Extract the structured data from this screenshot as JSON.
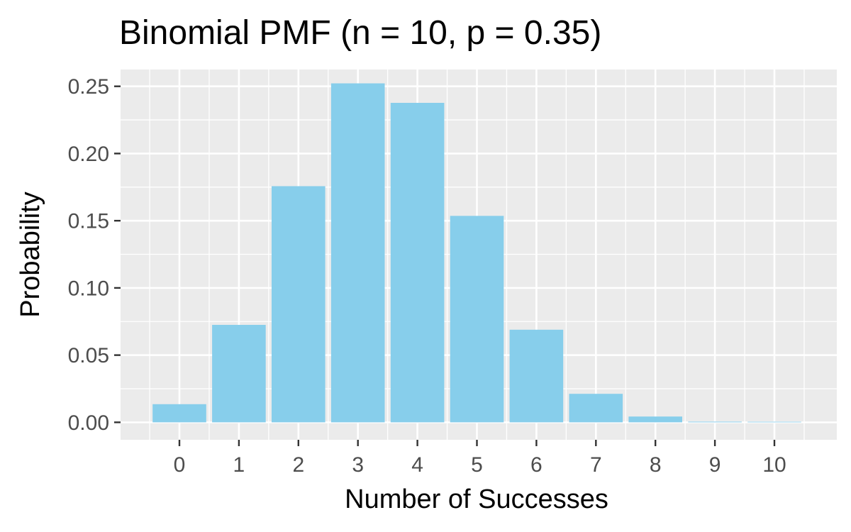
{
  "chart_data": {
    "type": "bar",
    "title": "Binomial PMF (n = 10, p = 0.35)",
    "xlabel": "Number of Successes",
    "ylabel": "Probability",
    "categories": [
      "0",
      "1",
      "2",
      "3",
      "4",
      "5",
      "6",
      "7",
      "8",
      "9",
      "10"
    ],
    "values": [
      0.0135,
      0.0725,
      0.1757,
      0.2522,
      0.2377,
      0.1536,
      0.0689,
      0.0212,
      0.0043,
      0.0005,
      3e-05
    ],
    "ylim": [
      -0.013,
      0.2625
    ],
    "y_ticks": [
      0.0,
      0.05,
      0.1,
      0.15,
      0.2,
      0.25
    ],
    "y_tick_labels": [
      "0.00",
      "0.05",
      "0.10",
      "0.15",
      "0.20",
      "0.25"
    ],
    "grid": true,
    "legend": "none",
    "colors": {
      "bar": "#87CEEB",
      "panel": "#EBEBEB",
      "grid": "#FFFFFF",
      "tick_text": "#4D4D4D",
      "axis_ticks": "#333333",
      "title": "#000000"
    }
  }
}
